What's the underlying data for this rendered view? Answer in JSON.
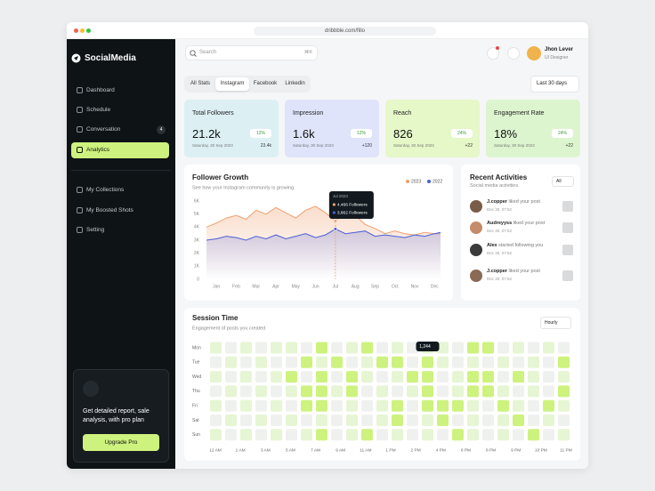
{
  "browser": {
    "url": "dribbble.com/fillo"
  },
  "sidebar": {
    "brand": "SocialMedia",
    "nav": [
      "Dashboard",
      "Schedule",
      "Conversation",
      "Analytics"
    ],
    "badge": 4,
    "nav_secondary": [
      "My Collections",
      "My Boosted Shots",
      "Setting"
    ],
    "promo_text": "Get detailed report, sale analysis, with pro plan",
    "promo_button": "Upgrade Pro"
  },
  "header": {
    "search": "Search",
    "shortcut": "⌘K",
    "user_name": "Jhon Lever",
    "user_role": "UI Designer"
  },
  "tabs": [
    "All Stats",
    "Instagram",
    "Facebook",
    "Linkedin"
  ],
  "period": "Last 30 days",
  "stats": [
    {
      "title": "Total Followers",
      "value": "21.2k",
      "change": "12%",
      "date": "Saturday, 30 Sep 2023",
      "delta": "23.4k"
    },
    {
      "title": "Impression",
      "value": "1.6k",
      "change": "12%",
      "date": "Saturday, 30 Sep 2023",
      "delta": "+120"
    },
    {
      "title": "Reach",
      "value": "826",
      "change": "24%",
      "date": "Saturday, 30 Sep 2023",
      "delta": "+22"
    },
    {
      "title": "Engagement Rate",
      "value": "18%",
      "change": "24%",
      "date": "Saturday, 30 Sep 2023",
      "delta": "+22"
    }
  ],
  "activities": {
    "title": "Recent Activities",
    "subtitle": "Social media activities.",
    "filter": "All",
    "items": [
      {
        "user": "J.copper",
        "action": "liked your post",
        "time": "Dec 30, 07:52"
      },
      {
        "user": "Audreyyss",
        "action": "liked your post",
        "time": "Dec 30, 07:52"
      },
      {
        "user": "Alex",
        "action": "started following you",
        "time": "Dec 30, 07:52"
      },
      {
        "user": "J.copper",
        "action": "liked your post",
        "time": "Dec 30, 07:52"
      }
    ]
  },
  "chart_data": [
    {
      "type": "line",
      "title": "Follower Growth",
      "subtitle": "See how your Instagram community is growing.",
      "x": [
        -0.5,
        0,
        0.5,
        1,
        1.5,
        2,
        2.5,
        3,
        3.5,
        4,
        4.5,
        5,
        5.5,
        6,
        6.5,
        7,
        7.5,
        8,
        8.5,
        9,
        9.5,
        10,
        10.5,
        11,
        11.3
      ],
      "xlim": [
        -0.5,
        11.3
      ],
      "xticks": [
        {
          "value": 0,
          "label": "Jan"
        },
        {
          "value": 1,
          "label": "Feb"
        },
        {
          "value": 2,
          "label": "Mar"
        },
        {
          "value": 3,
          "label": "Apr"
        },
        {
          "value": 4,
          "label": "May"
        },
        {
          "value": 5,
          "label": "Jun"
        },
        {
          "value": 6,
          "label": "Jul"
        },
        {
          "value": 7,
          "label": "Aug"
        },
        {
          "value": 8,
          "label": "Sep"
        },
        {
          "value": 9,
          "label": "Oct"
        },
        {
          "value": 10,
          "label": "Nov"
        },
        {
          "value": 11,
          "label": "Dec"
        }
      ],
      "ylim": [
        0,
        6000
      ],
      "yticks": [
        0,
        {
          "value": 1000,
          "label": "1K"
        },
        {
          "value": 2000,
          "label": "2K"
        },
        {
          "value": 3000,
          "label": "3K"
        },
        {
          "value": 4000,
          "label": "4K"
        },
        {
          "value": 5000,
          "label": "5K"
        },
        {
          "value": 6000,
          "label": "6K"
        }
      ],
      "series": [
        {
          "name": "2023",
          "color": "#f0a06e",
          "values": [
            4000,
            4300,
            4700,
            4900,
            4600,
            5300,
            5000,
            5500,
            5100,
            4700,
            5300,
            5600,
            5100,
            4466,
            5200,
            4900,
            4200,
            3900,
            3500,
            3700,
            3500,
            3400,
            3600,
            3500,
            3500
          ]
        },
        {
          "name": "2022",
          "color": "#4b5fd6",
          "values": [
            3000,
            3100,
            3300,
            3200,
            3000,
            3300,
            3100,
            3400,
            3100,
            3300,
            3500,
            3200,
            3400,
            3862,
            3500,
            3600,
            3700,
            3300,
            3400,
            3300,
            3200,
            3400,
            3300,
            3500,
            3600
          ]
        }
      ],
      "tooltip": {
        "title": "Jul 2023",
        "lines": [
          "4,466 Followers",
          "3,862 Followers"
        ]
      }
    },
    {
      "type": "heatmap",
      "title": "Session Time",
      "subtitle": "Engagement of posts you created",
      "control": "Hourly",
      "rows": [
        "Mon",
        "Tue",
        "Wed",
        "Thu",
        "Fri",
        "Sat",
        "Sun"
      ],
      "x_labels": [
        "12 AM",
        "1 AM",
        "3 AM",
        "5 AM",
        "7 AM",
        "9 AM",
        "11 AM",
        "1 PM",
        "2 PM",
        "4 PM",
        "6 PM",
        "8 PM",
        "9 PM",
        "10 PM",
        "11 PM"
      ],
      "colors": [
        "#eff1ef",
        "#e6f5d3",
        "#cdf27e"
      ],
      "values": [
        [
          1,
          0,
          1,
          0,
          1,
          1,
          0,
          2,
          0,
          1,
          2,
          0,
          1,
          0,
          1,
          1,
          0,
          2,
          2,
          0,
          1,
          0,
          1,
          0
        ],
        [
          0,
          1,
          0,
          1,
          0,
          0,
          2,
          1,
          2,
          0,
          1,
          2,
          2,
          0,
          2,
          1,
          0,
          1,
          0,
          1,
          0,
          1,
          0,
          2
        ],
        [
          1,
          0,
          1,
          0,
          1,
          2,
          0,
          2,
          0,
          2,
          1,
          0,
          1,
          2,
          2,
          0,
          1,
          2,
          2,
          0,
          2,
          1,
          0,
          1
        ],
        [
          0,
          1,
          0,
          1,
          0,
          1,
          2,
          2,
          1,
          2,
          0,
          1,
          0,
          1,
          2,
          0,
          1,
          2,
          2,
          1,
          0,
          1,
          0,
          2
        ],
        [
          1,
          0,
          1,
          0,
          1,
          0,
          2,
          2,
          0,
          1,
          0,
          1,
          2,
          0,
          2,
          2,
          2,
          1,
          0,
          2,
          1,
          0,
          2,
          1
        ],
        [
          0,
          1,
          0,
          1,
          0,
          1,
          0,
          1,
          0,
          1,
          0,
          1,
          2,
          0,
          1,
          2,
          0,
          1,
          0,
          1,
          2,
          0,
          1,
          0
        ],
        [
          1,
          0,
          1,
          0,
          1,
          0,
          1,
          2,
          0,
          1,
          2,
          0,
          1,
          0,
          1,
          0,
          2,
          1,
          0,
          1,
          0,
          2,
          0,
          1
        ]
      ],
      "tooltip": "1,244"
    }
  ]
}
